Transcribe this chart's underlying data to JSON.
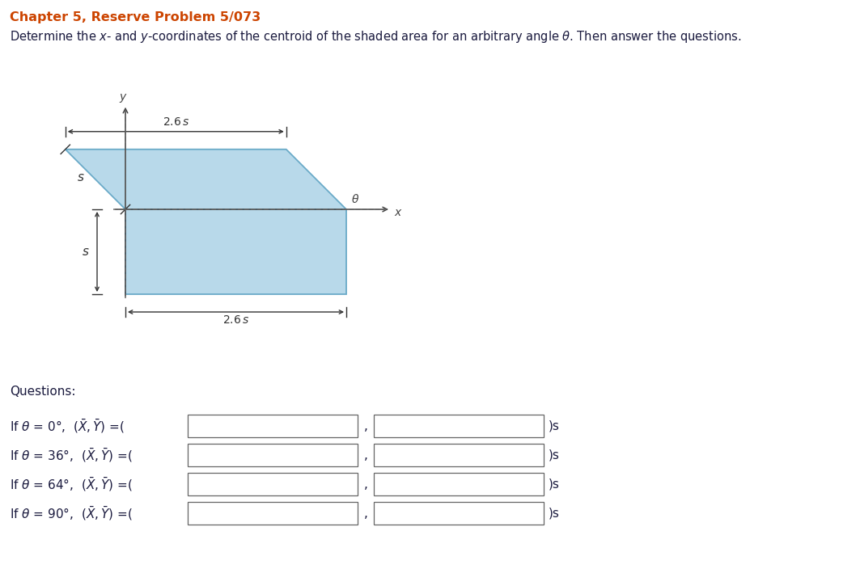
{
  "title_line1": "Chapter 5, Reserve Problem 5/073",
  "title_color": "#cc4400",
  "shade_color": "#b8d9ea",
  "shade_edge_color": "#6aaac8",
  "angle_labels": [
    "0°",
    "36°",
    "64°",
    "90°"
  ],
  "fig_width": 10.58,
  "fig_height": 7.04,
  "dpi": 100,
  "ox": 1.55,
  "oy": 4.45,
  "s": 1.05,
  "tw": 2.73,
  "theta_slant_deg": 135
}
